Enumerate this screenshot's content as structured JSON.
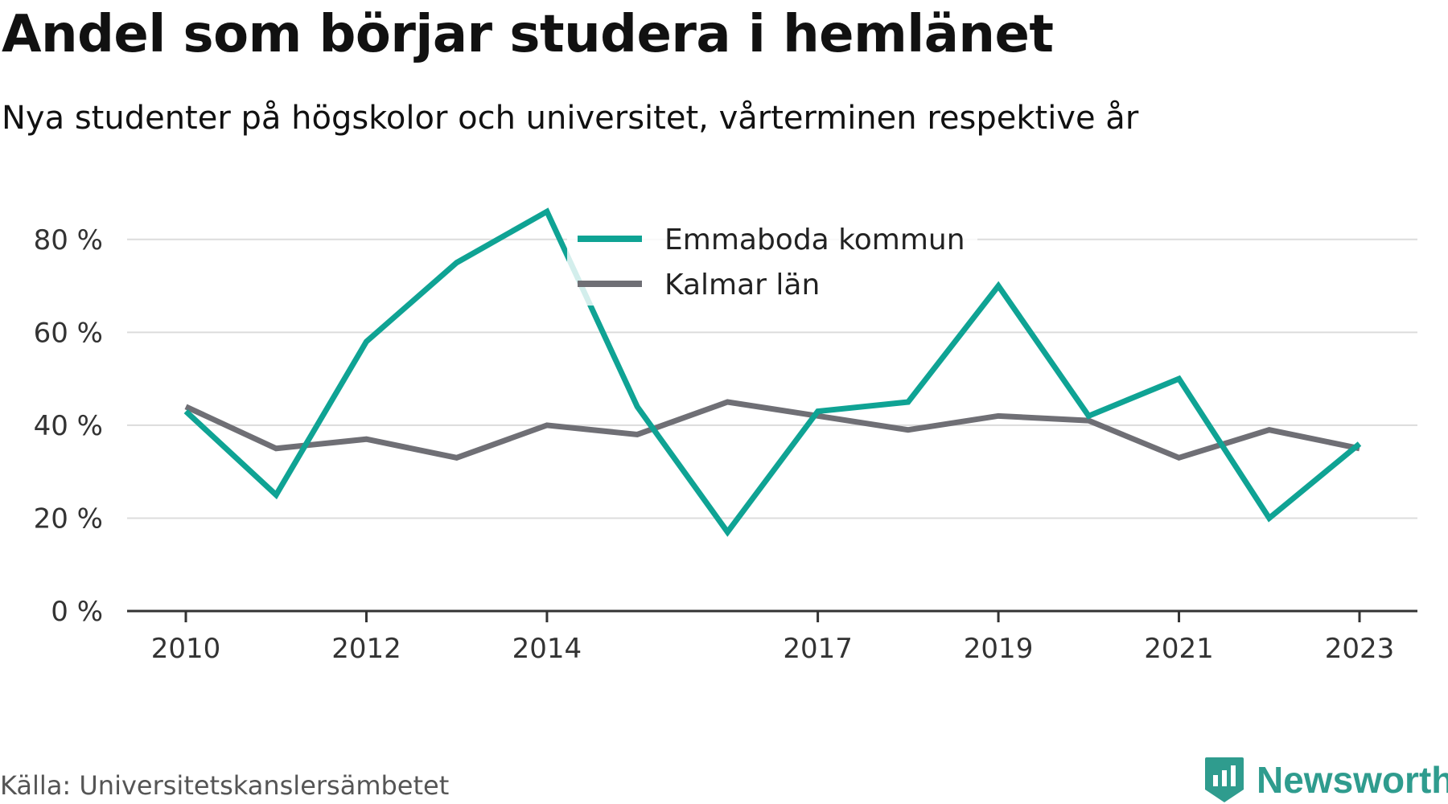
{
  "title": "Andel som börjar studera i hemlänet",
  "subtitle": "Nya studenter på högskolor och universitet, vårterminen respektive år",
  "source": "Källa: Universitetskanslersämbetet",
  "brand": {
    "name": "Newsworthy",
    "color": "#2f9c8e",
    "icon": "newsworthy-logo-icon"
  },
  "chart_data": {
    "type": "line",
    "x": [
      2010,
      2011,
      2012,
      2013,
      2014,
      2015,
      2016,
      2017,
      2018,
      2019,
      2020,
      2021,
      2022,
      2023
    ],
    "xticks": [
      2010,
      2012,
      2014,
      2017,
      2019,
      2021,
      2023
    ],
    "xtick_labels": [
      "2010",
      "2012",
      "2014",
      "2017",
      "2019",
      "2021",
      "2023"
    ],
    "ylim": [
      0,
      90
    ],
    "yticks": [
      0,
      20,
      40,
      60,
      80
    ],
    "ytick_labels": [
      "0 %",
      "20 %",
      "40 %",
      "60 %",
      "80 %"
    ],
    "grid": true,
    "legend": "top-center",
    "series": [
      {
        "name": "Emmaboda kommun",
        "color": "#0fa394",
        "values": [
          43,
          25,
          58,
          75,
          86,
          44,
          17,
          43,
          45,
          70,
          42,
          50,
          20,
          36
        ]
      },
      {
        "name": "Kalmar län",
        "color": "#6f6f75",
        "values": [
          44,
          35,
          37,
          33,
          40,
          38,
          45,
          42,
          39,
          42,
          41,
          33,
          39,
          35
        ]
      }
    ]
  }
}
